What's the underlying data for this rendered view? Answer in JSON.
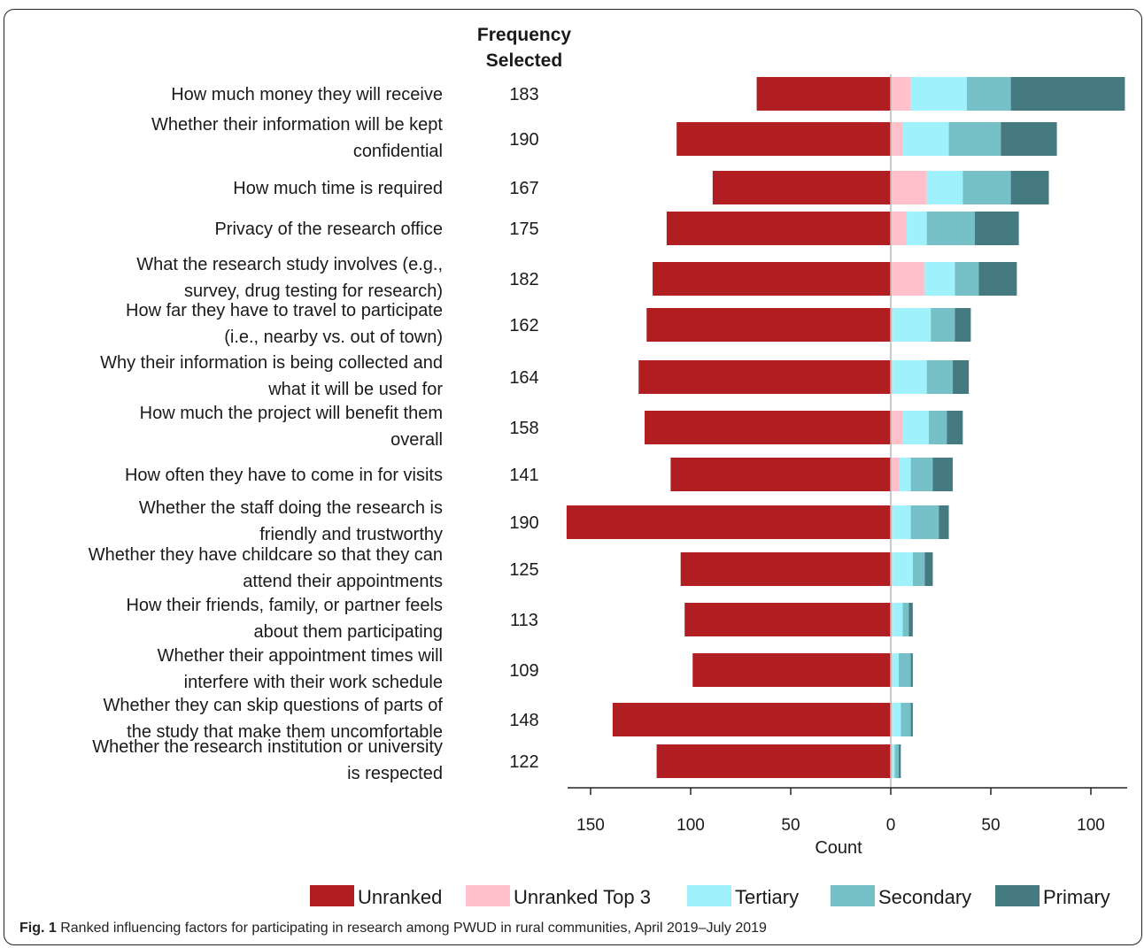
{
  "chart_data": {
    "type": "bar",
    "orientation": "horizontal-diverging",
    "frequency_header": [
      "Frequency",
      "Selected"
    ],
    "xlabel": "Count",
    "xlim": [
      -165,
      118
    ],
    "x_ticks": [
      {
        "value": -150,
        "label": "150"
      },
      {
        "value": -100,
        "label": "100"
      },
      {
        "value": -50,
        "label": "50"
      },
      {
        "value": 0,
        "label": "0"
      },
      {
        "value": 50,
        "label": "50"
      },
      {
        "value": 100,
        "label": "100"
      }
    ],
    "categories": [
      [
        "How much money they will receive"
      ],
      [
        "Whether their information  will be kept",
        "confidential"
      ],
      [
        "How much time is required"
      ],
      [
        "Privacy of the research office"
      ],
      [
        "What the research study involves  (e.g.,",
        "survey, drug testing for research)"
      ],
      [
        "How far they have to travel to participate",
        "(i.e., nearby vs. out of town)"
      ],
      [
        "Why their information is being collected and",
        "what it will be used for"
      ],
      [
        "How much the project will benefit them",
        "overall"
      ],
      [
        "How often they have to come in for visits"
      ],
      [
        "Whether the staff doing the research is",
        "friendly and trustworthy"
      ],
      [
        "Whether they have  childcare so that they can",
        "attend their appointments"
      ],
      [
        "How their friends, family, or partner feels",
        "about them participating"
      ],
      [
        "Whether their appointment times will",
        "interfere with their work schedule"
      ],
      [
        "Whether they can skip questions of parts of",
        "the study that make them uncomfortable"
      ],
      [
        "Whether the research institution or university",
        "is respected"
      ]
    ],
    "frequency_selected": [
      "183",
      "190",
      "167",
      "175",
      "182",
      "162",
      "164",
      "158",
      "141",
      "190",
      "125",
      "113",
      "109",
      "148",
      "122"
    ],
    "series": [
      {
        "name": "Unranked",
        "color": "#b01e22",
        "side": "left",
        "values": [
          67,
          107,
          89,
          112,
          119,
          122,
          126,
          123,
          110,
          162,
          105,
          103,
          99,
          139,
          117
        ]
      },
      {
        "name": "Unranked  Top 3",
        "color": "#ffc0cb",
        "side": "right",
        "values": [
          10,
          6,
          18,
          8,
          17,
          1,
          1,
          6,
          4,
          1,
          1,
          1,
          1,
          1,
          1
        ]
      },
      {
        "name": "Tertiary",
        "color": "#9ff2fb",
        "side": "right",
        "values": [
          28,
          23,
          18,
          10,
          15,
          19,
          17,
          13,
          6,
          9,
          10,
          5,
          3,
          4,
          1
        ]
      },
      {
        "name": "Secondary",
        "color": "#76c1c8",
        "side": "right",
        "values": [
          22,
          26,
          24,
          24,
          12,
          12,
          13,
          9,
          11,
          14,
          6,
          3,
          6,
          5,
          2
        ]
      },
      {
        "name": "Primary",
        "color": "#457b80",
        "side": "right",
        "values": [
          57,
          28,
          19,
          22,
          19,
          8,
          8,
          8,
          10,
          5,
          4,
          2,
          1,
          1,
          1
        ]
      }
    ]
  },
  "caption": {
    "prefix": "Fig. 1",
    "text": " Ranked influencing factors for participating in research among PWUD in rural communities, April 2019–July 2019"
  }
}
